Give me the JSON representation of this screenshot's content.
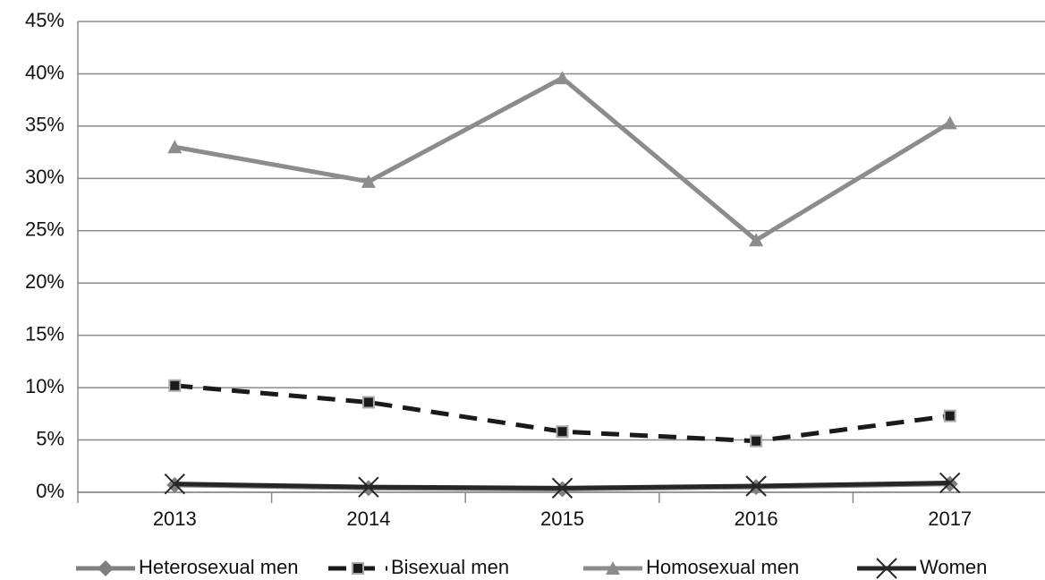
{
  "chart_data": {
    "type": "line",
    "categories": [
      "2013",
      "2014",
      "2015",
      "2016",
      "2017"
    ],
    "series": [
      {
        "name": "Heterosexual men",
        "color": "#7f7f7f",
        "dash": false,
        "marker": "diamond",
        "values": [
          0.7,
          0.4,
          0.3,
          0.5,
          0.8
        ]
      },
      {
        "name": "Bisexual men",
        "color": "#1a1a1a",
        "dash": true,
        "marker": "square",
        "values": [
          10.2,
          8.6,
          5.8,
          4.9,
          7.3
        ]
      },
      {
        "name": "Homosexual men",
        "color": "#8c8c8c",
        "dash": false,
        "marker": "triangle",
        "values": [
          33,
          29.7,
          39.6,
          24.1,
          35.3
        ]
      },
      {
        "name": "Women",
        "color": "#262626",
        "dash": false,
        "marker": "x",
        "values": [
          0.8,
          0.5,
          0.4,
          0.6,
          0.9
        ]
      }
    ],
    "ylim": [
      0,
      45
    ],
    "yticks": [
      {
        "value": 0,
        "label": "0%"
      },
      {
        "value": 5,
        "label": "5%"
      },
      {
        "value": 10,
        "label": "10%"
      },
      {
        "value": 15,
        "label": "15%"
      },
      {
        "value": 20,
        "label": "20%"
      },
      {
        "value": 25,
        "label": "25%"
      },
      {
        "value": 30,
        "label": "30%"
      },
      {
        "value": 35,
        "label": "35%"
      },
      {
        "value": 40,
        "label": "40%"
      },
      {
        "value": 45,
        "label": "45%"
      }
    ],
    "grid": true,
    "legend": "bottom"
  }
}
